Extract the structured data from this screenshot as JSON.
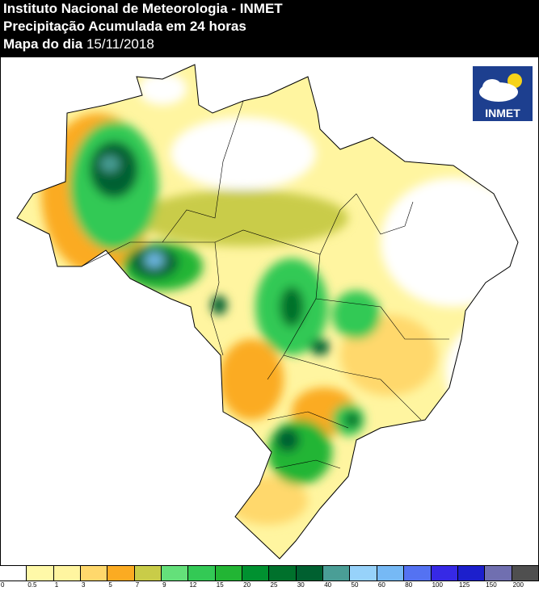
{
  "header": {
    "line1": "Instituto Nacional de Meteorologia - INMET",
    "line2": "Precipitação Acumulada em 24 horas",
    "line3_label": "Mapa do dia",
    "date": "15/11/2018"
  },
  "logo": {
    "text": "INMET"
  },
  "legend": {
    "labels": [
      "0",
      "0.5",
      "1",
      "3",
      "5",
      "7",
      "9",
      "12",
      "15",
      "20",
      "25",
      "30",
      "40",
      "50",
      "60",
      "80",
      "100",
      "125",
      "150",
      "200"
    ],
    "colors": [
      "#ffffff",
      "#fff9a8",
      "#fff5a0",
      "#ffd86c",
      "#fbab22",
      "#c9cc48",
      "#64e07a",
      "#33c955",
      "#22b534",
      "#009130",
      "#00712c",
      "#006030",
      "#4a9e96",
      "#97d2fa",
      "#76b9f5",
      "#5472f2",
      "#3629e6",
      "#1c1fcc",
      "#706fb0",
      "#4f4f4f"
    ]
  }
}
